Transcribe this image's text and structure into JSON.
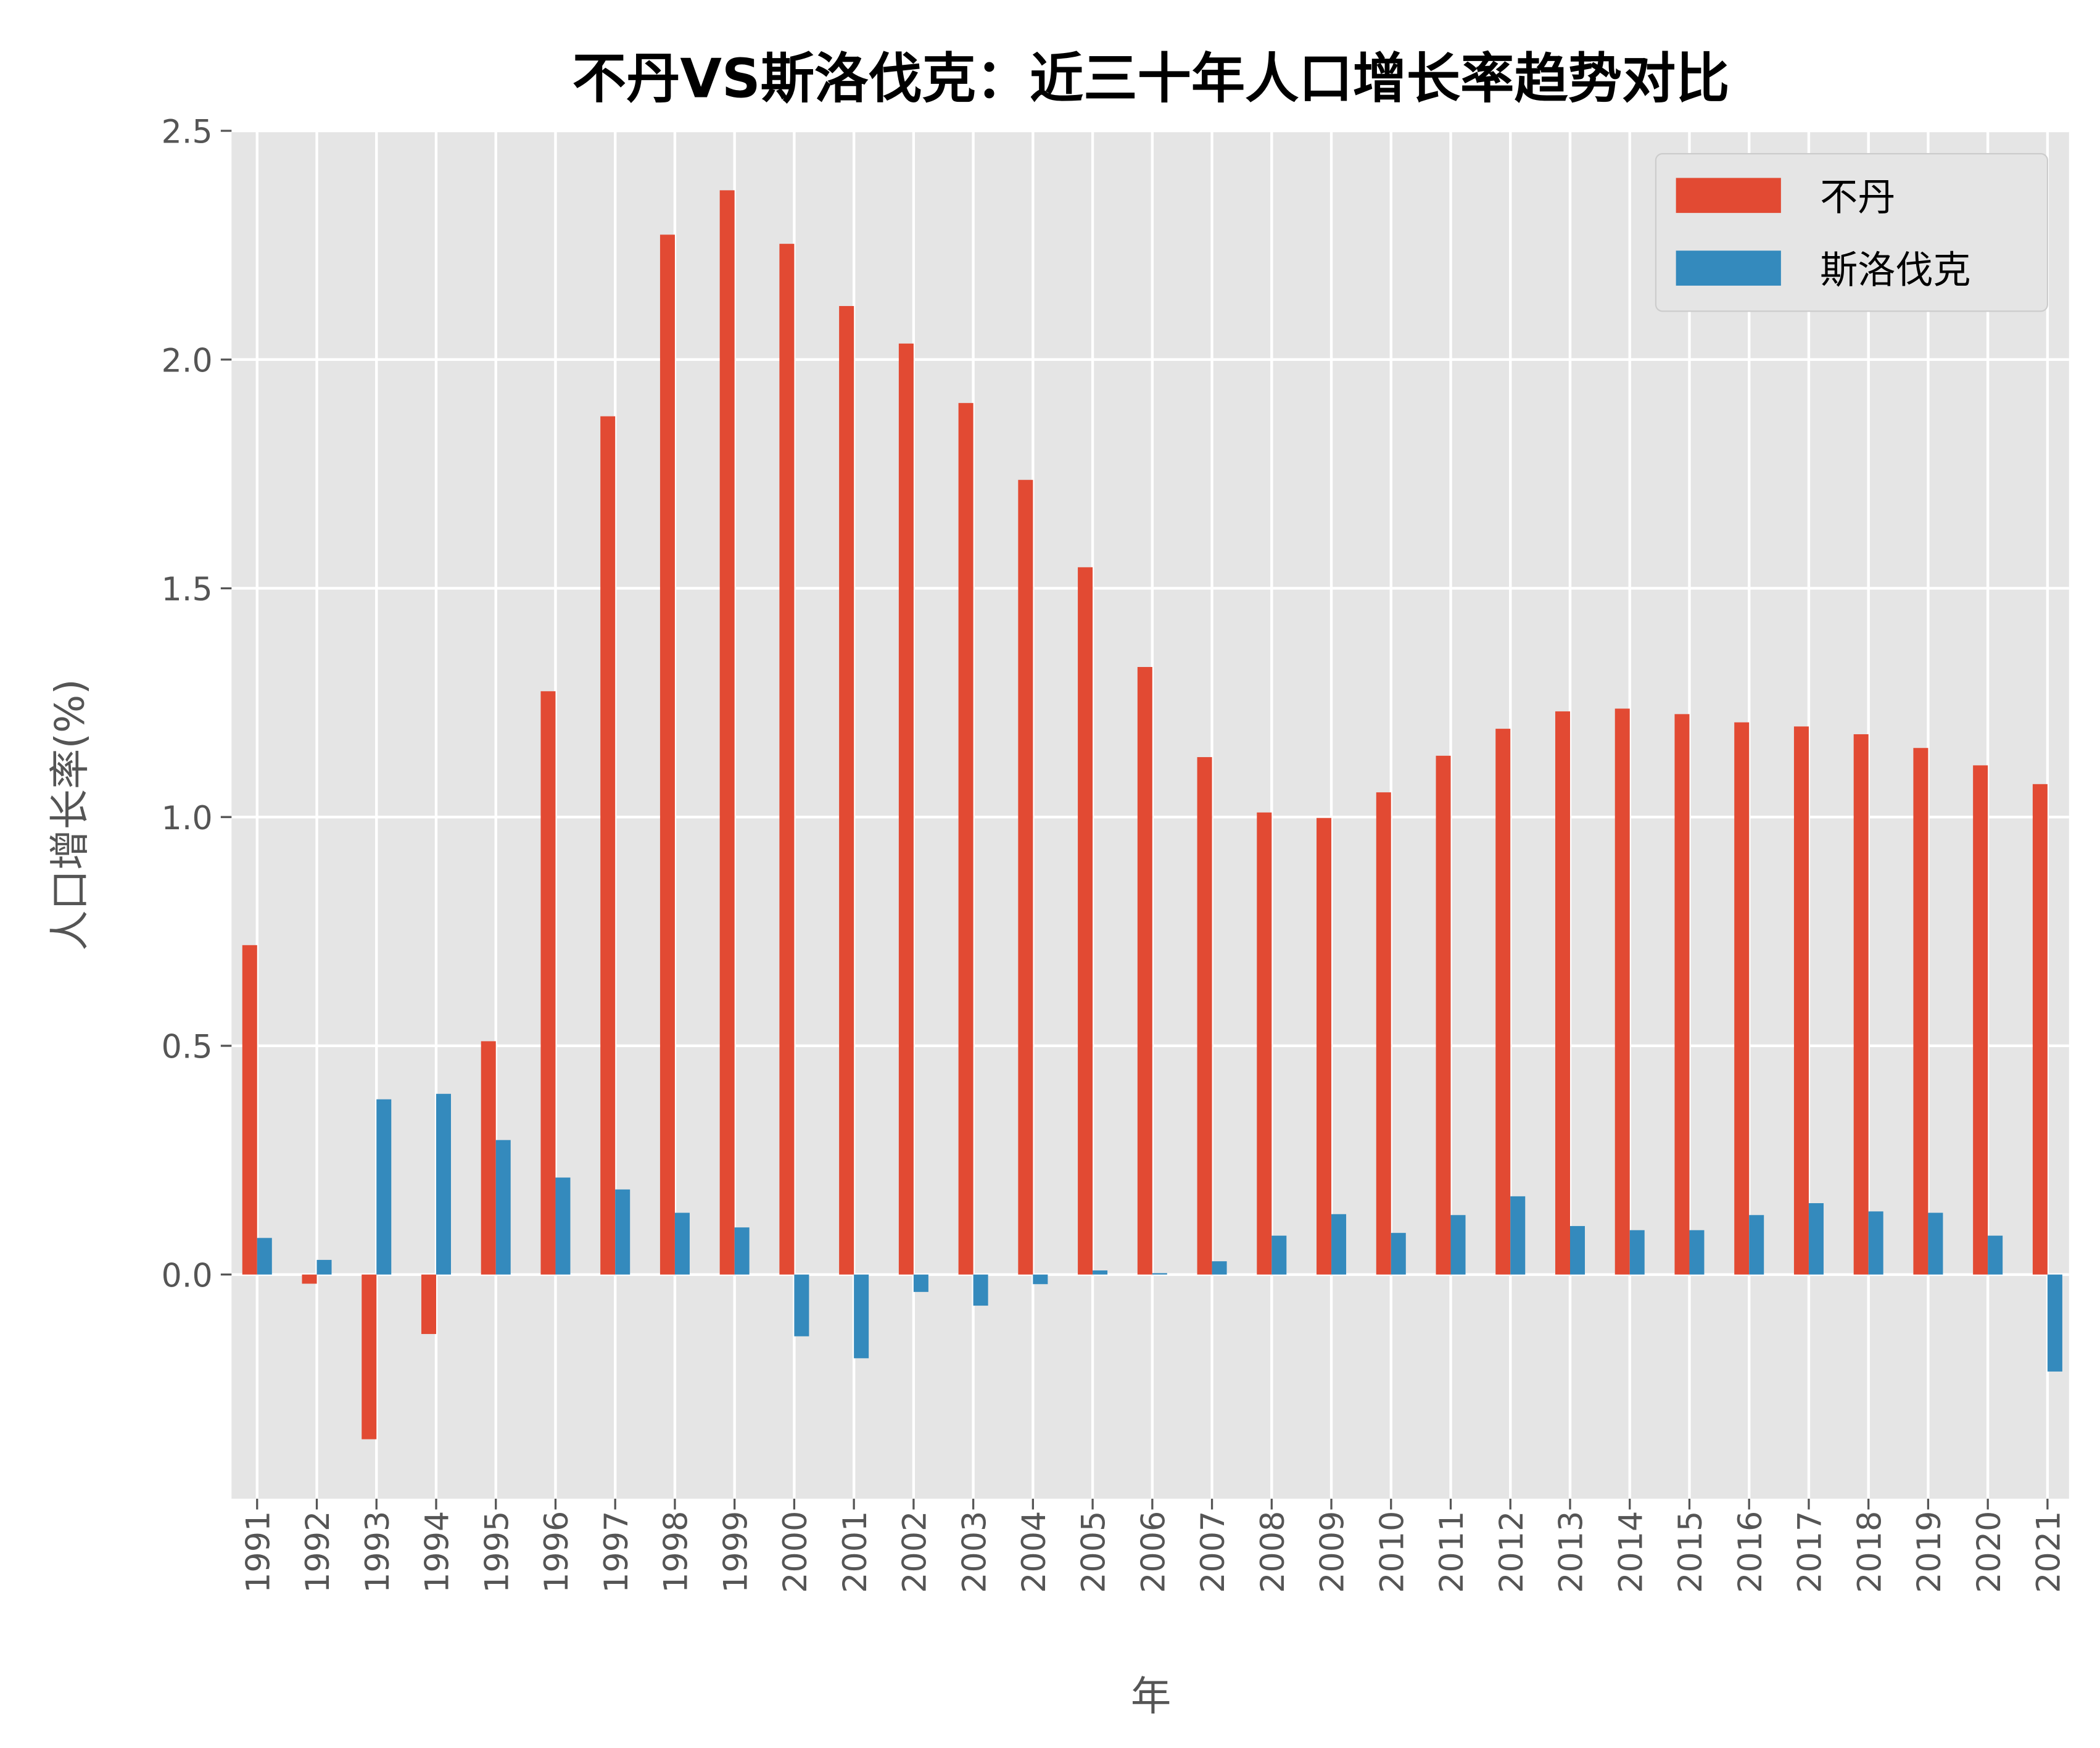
{
  "chart_data": {
    "type": "bar",
    "title": "不丹VS斯洛伐克：近三十年人口增长率趋势对比",
    "xlabel": "年",
    "ylabel": "人口增长率(%)",
    "ylim": [
      -0.49,
      2.5
    ],
    "yticks": [
      "0.0",
      "0.5",
      "1.0",
      "1.5",
      "2.0",
      "2.5"
    ],
    "grid": true,
    "legend": "top-right",
    "categories": [
      "1991",
      "1992",
      "1993",
      "1994",
      "1995",
      "1996",
      "1997",
      "1998",
      "1999",
      "2000",
      "2001",
      "2002",
      "2003",
      "2004",
      "2005",
      "2006",
      "2007",
      "2008",
      "2009",
      "2010",
      "2011",
      "2012",
      "2013",
      "2014",
      "2015",
      "2016",
      "2017",
      "2018",
      "2019",
      "2020",
      "2021"
    ],
    "series": [
      {
        "name": "不丹",
        "color": "#E24A33",
        "values": [
          0.72,
          -0.02,
          -0.36,
          -0.13,
          0.51,
          1.275,
          1.876,
          2.273,
          2.37,
          2.253,
          2.117,
          2.035,
          1.905,
          1.737,
          1.546,
          1.328,
          1.131,
          1.01,
          0.998,
          1.054,
          1.134,
          1.193,
          1.231,
          1.237,
          1.225,
          1.207,
          1.198,
          1.181,
          1.151,
          1.113,
          1.072
        ]
      },
      {
        "name": "斯洛伐克",
        "color": "#348ABD",
        "values": [
          0.08,
          0.032,
          0.383,
          0.395,
          0.294,
          0.212,
          0.186,
          0.135,
          0.103,
          -0.135,
          -0.183,
          -0.038,
          -0.068,
          -0.021,
          0.009,
          0.003,
          0.029,
          0.085,
          0.132,
          0.091,
          0.13,
          0.171,
          0.106,
          0.097,
          0.097,
          0.13,
          0.156,
          0.138,
          0.135,
          0.085,
          -0.212
        ]
      }
    ]
  }
}
